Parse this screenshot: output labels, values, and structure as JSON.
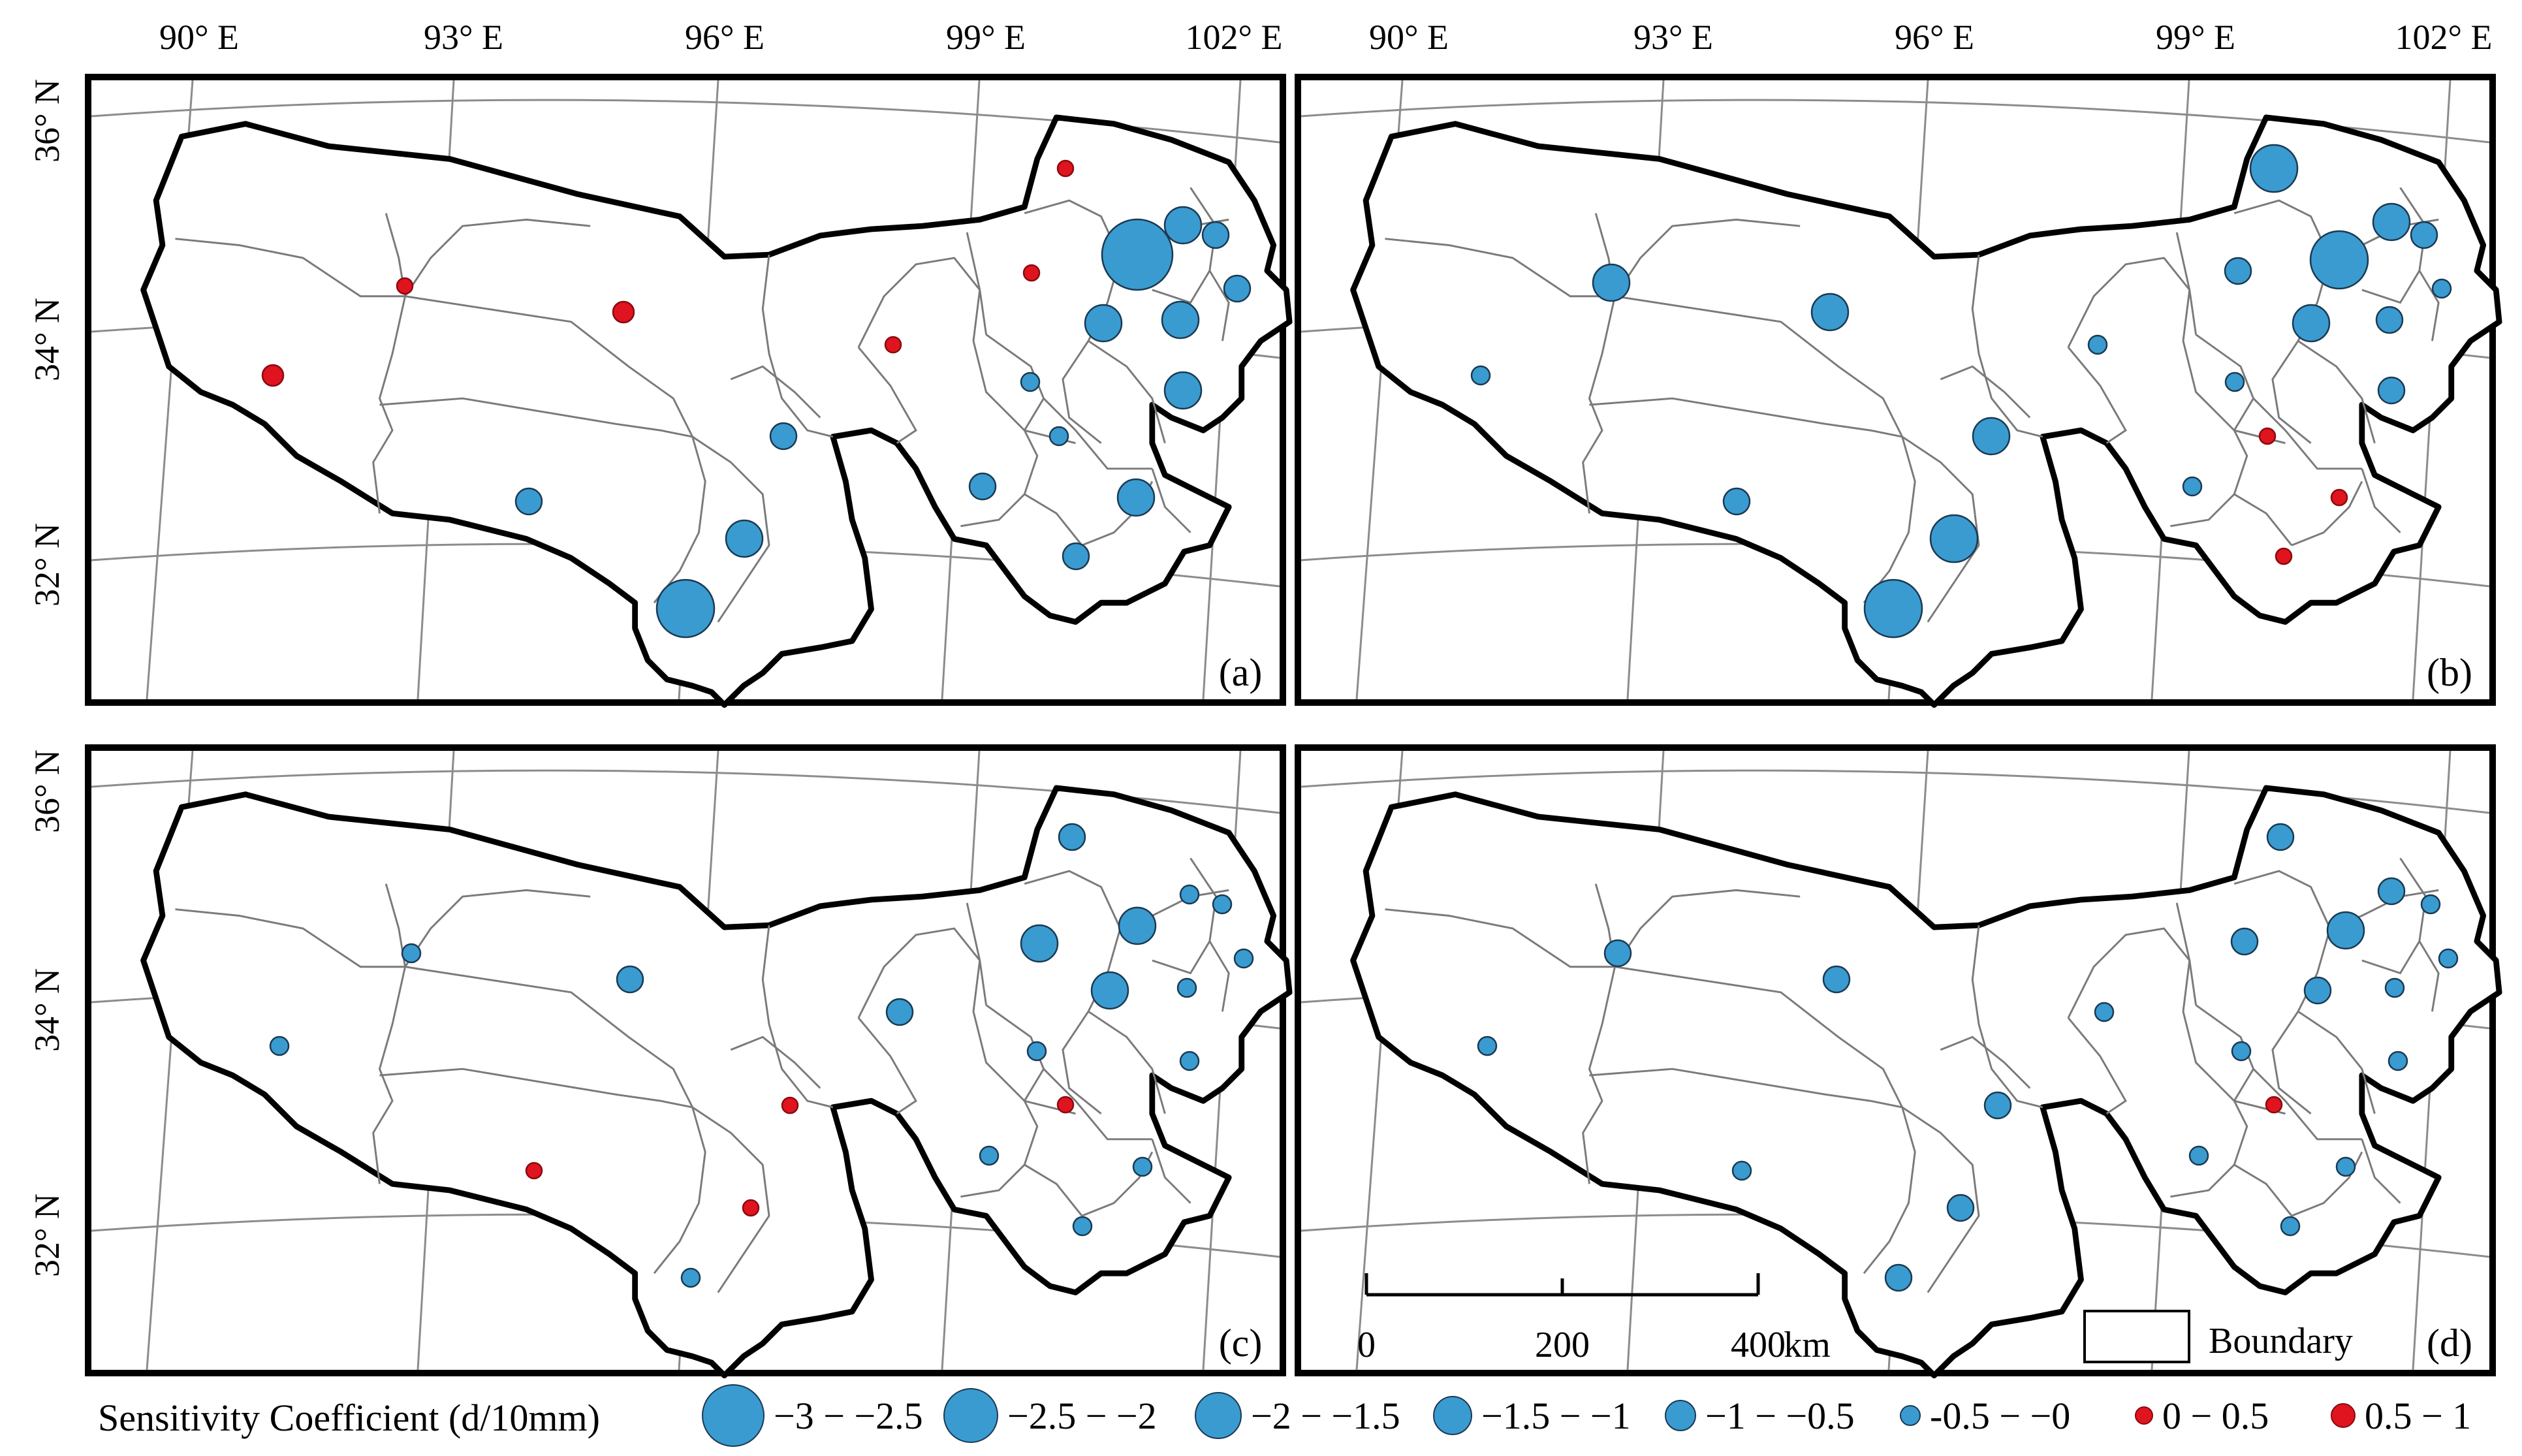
{
  "figure": {
    "lon_labels": [
      "90° E",
      "93° E",
      "96° E",
      "99° E",
      "102° E"
    ],
    "lat_labels": [
      "36° N",
      "34° N",
      "32° N"
    ],
    "panels": [
      {
        "label": "(a)"
      },
      {
        "label": "(b)"
      },
      {
        "label": "(c)"
      },
      {
        "label": "(d)"
      }
    ],
    "scalebar": {
      "ticks": [
        "0",
        "200",
        "400"
      ],
      "unit": "km"
    },
    "boundary_legend": "Boundary"
  },
  "legend": {
    "title": "Sensitivity Coefficient (d/10mm)",
    "classes": [
      {
        "label": "−3 − −2.5",
        "color": "#3a9bd0",
        "size_rank": 6
      },
      {
        "label": "−2.5 − −2",
        "color": "#3a9bd0",
        "size_rank": 5
      },
      {
        "label": "−2 − −1.5",
        "color": "#3a9bd0",
        "size_rank": 4
      },
      {
        "label": "−1.5 − −1",
        "color": "#3a9bd0",
        "size_rank": 3
      },
      {
        "label": "−1 − −0.5",
        "color": "#3a9bd0",
        "size_rank": 2
      },
      {
        "label": "-0.5 − −0",
        "color": "#3a9bd0",
        "size_rank": 1
      },
      {
        "label": "0 − 0.5",
        "color": "#e0141e",
        "size_rank": 1
      },
      {
        "label": "0.5 − 1",
        "color": "#e0141e",
        "size_rank": 2
      }
    ]
  },
  "colors": {
    "negative": "#3a9bd0",
    "positive": "#e0141e",
    "boundary": "#000000",
    "subbasin": "#7a7a7a",
    "graticule": "#8c8c8c"
  }
}
